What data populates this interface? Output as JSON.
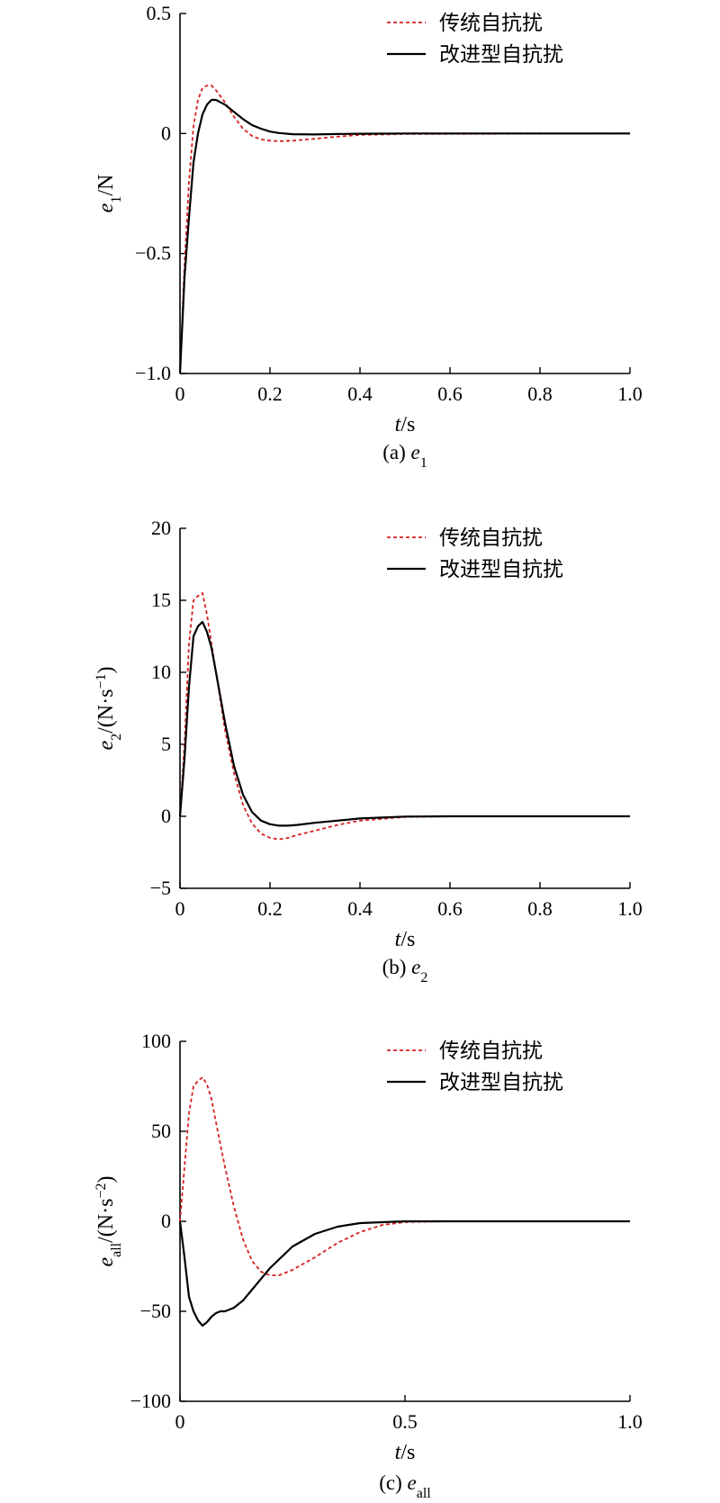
{
  "colors": {
    "traditional": "#d42020",
    "improved": "#000000"
  },
  "legend": {
    "traditional": "传统自抗扰",
    "improved": "改进型自抗扰"
  },
  "chart_data": [
    {
      "id": "a",
      "type": "line",
      "caption": {
        "prefix": "(a) ",
        "var": "e",
        "sub": "1"
      },
      "xlabel": {
        "var": "t",
        "rest": "/s"
      },
      "ylabel": {
        "var": "e",
        "sub": "1",
        "rest": "/N",
        "sup": ""
      },
      "xlim": [
        0,
        1.0
      ],
      "ylim": [
        -1.0,
        0.5
      ],
      "xticks": [
        0,
        0.2,
        0.4,
        0.6,
        0.8,
        1.0
      ],
      "xtick_labels": [
        "0",
        "0.2",
        "0.4",
        "0.6",
        "0.8",
        "1.0"
      ],
      "yticks": [
        -1.0,
        -0.5,
        0,
        0.5
      ],
      "ytick_labels": [
        "−1.0",
        "−0.5",
        "0",
        "0.5"
      ],
      "legend_position": "top-right",
      "series": [
        {
          "name": "传统自抗扰",
          "style": "dashed",
          "x": [
            0,
            0.01,
            0.02,
            0.03,
            0.04,
            0.05,
            0.06,
            0.07,
            0.08,
            0.1,
            0.12,
            0.14,
            0.16,
            0.18,
            0.2,
            0.22,
            0.25,
            0.3,
            0.35,
            0.4,
            0.5,
            1.0
          ],
          "y": [
            -1.0,
            -0.55,
            -0.2,
            0.03,
            0.14,
            0.19,
            0.2,
            0.2,
            0.18,
            0.13,
            0.07,
            0.02,
            -0.01,
            -0.025,
            -0.03,
            -0.032,
            -0.03,
            -0.022,
            -0.013,
            -0.006,
            -0.002,
            0
          ]
        },
        {
          "name": "改进型自抗扰",
          "style": "solid",
          "x": [
            0,
            0.01,
            0.02,
            0.03,
            0.04,
            0.05,
            0.06,
            0.07,
            0.08,
            0.09,
            0.1,
            0.12,
            0.14,
            0.16,
            0.18,
            0.2,
            0.22,
            0.25,
            0.3,
            0.35,
            0.4,
            0.5,
            1.0
          ],
          "y": [
            -1.0,
            -0.6,
            -0.35,
            -0.12,
            0.0,
            0.08,
            0.12,
            0.14,
            0.14,
            0.13,
            0.12,
            0.09,
            0.06,
            0.035,
            0.02,
            0.008,
            0.002,
            -0.003,
            -0.004,
            -0.002,
            -0.001,
            0,
            0
          ]
        }
      ]
    },
    {
      "id": "b",
      "type": "line",
      "caption": {
        "prefix": "(b) ",
        "var": "e",
        "sub": "2"
      },
      "xlabel": {
        "var": "t",
        "rest": "/s"
      },
      "ylabel": {
        "var": "e",
        "sub": "2",
        "rest": "/(N·s",
        "sup": "−1",
        "end": ")"
      },
      "xlim": [
        0,
        1.0
      ],
      "ylim": [
        -5,
        20
      ],
      "xticks": [
        0,
        0.2,
        0.4,
        0.6,
        0.8,
        1.0
      ],
      "xtick_labels": [
        "0",
        "0.2",
        "0.4",
        "0.6",
        "0.8",
        "1.0"
      ],
      "yticks": [
        -5,
        0,
        5,
        10,
        15,
        20
      ],
      "ytick_labels": [
        "−5",
        "0",
        "5",
        "10",
        "15",
        "20"
      ],
      "legend_position": "top-right",
      "series": [
        {
          "name": "传统自抗扰",
          "style": "dashed",
          "x": [
            0,
            0.01,
            0.02,
            0.03,
            0.04,
            0.05,
            0.06,
            0.07,
            0.08,
            0.1,
            0.12,
            0.14,
            0.16,
            0.18,
            0.2,
            0.22,
            0.24,
            0.26,
            0.3,
            0.35,
            0.4,
            0.5,
            0.6,
            1.0
          ],
          "y": [
            0,
            5,
            12,
            15,
            15.3,
            15.5,
            14.0,
            12.0,
            10.0,
            6.0,
            3.0,
            0.8,
            -0.5,
            -1.2,
            -1.5,
            -1.6,
            -1.5,
            -1.3,
            -1.0,
            -0.6,
            -0.3,
            -0.05,
            0,
            0
          ]
        },
        {
          "name": "改进型自抗扰",
          "style": "solid",
          "x": [
            0,
            0.01,
            0.02,
            0.03,
            0.04,
            0.05,
            0.06,
            0.07,
            0.08,
            0.1,
            0.12,
            0.14,
            0.16,
            0.18,
            0.2,
            0.22,
            0.24,
            0.26,
            0.3,
            0.35,
            0.4,
            0.5,
            0.6,
            1.0
          ],
          "y": [
            0,
            4,
            9,
            12.5,
            13.2,
            13.5,
            12.8,
            11.7,
            10.0,
            6.5,
            3.5,
            1.5,
            0.3,
            -0.3,
            -0.55,
            -0.65,
            -0.65,
            -0.6,
            -0.45,
            -0.3,
            -0.15,
            -0.02,
            0,
            0
          ]
        }
      ]
    },
    {
      "id": "c",
      "type": "line",
      "caption": {
        "prefix": "(c) ",
        "var": "e",
        "sub": "all"
      },
      "xlabel": {
        "var": "t",
        "rest": "/s"
      },
      "ylabel": {
        "var": "e",
        "sub": "all",
        "rest": "/(N·s",
        "sup": "−2",
        "end": ")"
      },
      "xlim": [
        0,
        1.0
      ],
      "ylim": [
        -100,
        100
      ],
      "xticks": [
        0,
        0.5,
        1.0
      ],
      "xtick_labels": [
        "0",
        "0.5",
        "1.0"
      ],
      "yticks": [
        -100,
        -50,
        0,
        50,
        100
      ],
      "ytick_labels": [
        "−100",
        "−50",
        "0",
        "50",
        "100"
      ],
      "legend_position": "top-right",
      "series": [
        {
          "name": "传统自抗扰",
          "style": "dashed",
          "x": [
            0,
            0.01,
            0.02,
            0.03,
            0.04,
            0.05,
            0.06,
            0.07,
            0.08,
            0.1,
            0.12,
            0.14,
            0.16,
            0.18,
            0.2,
            0.22,
            0.25,
            0.3,
            0.35,
            0.4,
            0.45,
            0.5,
            0.6,
            1.0
          ],
          "y": [
            0,
            30,
            60,
            75,
            78,
            80,
            76,
            68,
            55,
            30,
            8,
            -10,
            -22,
            -28,
            -30,
            -30,
            -27,
            -20,
            -12,
            -6,
            -2,
            -0.5,
            0,
            0
          ]
        },
        {
          "name": "改进型自抗扰",
          "style": "solid",
          "x": [
            0,
            0.01,
            0.02,
            0.03,
            0.04,
            0.05,
            0.06,
            0.07,
            0.08,
            0.09,
            0.1,
            0.12,
            0.14,
            0.16,
            0.18,
            0.2,
            0.25,
            0.3,
            0.35,
            0.4,
            0.45,
            0.5,
            0.6,
            1.0
          ],
          "y": [
            0,
            -20,
            -42,
            -50,
            -55,
            -58,
            -56,
            -53,
            -51,
            -50,
            -50,
            -48,
            -44,
            -38,
            -32,
            -26,
            -14,
            -7,
            -3,
            -1,
            -0.5,
            0,
            0,
            0
          ]
        }
      ]
    }
  ]
}
